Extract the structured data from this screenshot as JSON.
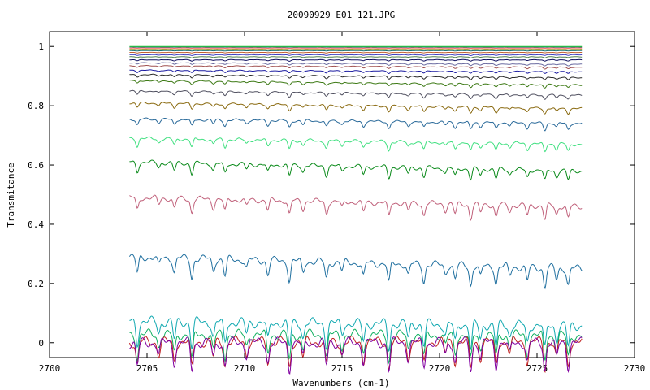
{
  "chart_data": {
    "type": "line",
    "title": "20090929_E01_121.JPG",
    "xlabel": "Wavenumbers (cm-1)",
    "ylabel": "Transmitance",
    "xlim": [
      2700,
      2730
    ],
    "ylim": [
      -0.05,
      1.05
    ],
    "x_ticks": [
      "2700",
      "2705",
      "2710",
      "2715",
      "2720",
      "2725",
      "2730"
    ],
    "y_ticks": [
      "0",
      "0.2",
      "0.4",
      "0.6",
      "0.8",
      "1"
    ],
    "grid": false,
    "legend": "none",
    "x_range_of_data": [
      2704.1,
      2727.3
    ],
    "absorption_lines_cm1": [
      2704.5,
      2705.6,
      2706.4,
      2707.3,
      2708.4,
      2709.0,
      2710.1,
      2711.2,
      2712.3,
      2713.0,
      2714.2,
      2715.0,
      2716.1,
      2717.4,
      2718.4,
      2719.2,
      2720.3,
      2720.8,
      2721.6,
      2722.1,
      2722.9,
      2723.6,
      2724.5,
      2725.4,
      2726.0,
      2726.6
    ],
    "series": [
      {
        "color": "#1f6f9f",
        "start": 0.29,
        "end": 0.25
      },
      {
        "color": "#c0607a",
        "start": 0.49,
        "end": 0.46
      },
      {
        "color": "#0a8a1a",
        "start": 0.61,
        "end": 0.58
      },
      {
        "color": "#40e080",
        "start": 0.69,
        "end": 0.67
      },
      {
        "color": "#2a6a9a",
        "start": 0.755,
        "end": 0.74
      },
      {
        "color": "#8a6a10",
        "start": 0.81,
        "end": 0.79
      },
      {
        "color": "#505060",
        "start": 0.85,
        "end": 0.835
      },
      {
        "color": "#3d7a15",
        "start": 0.885,
        "end": 0.87
      },
      {
        "color": "#2a2a2a",
        "start": 0.905,
        "end": 0.895
      },
      {
        "color": "#1a1aa0",
        "start": 0.92,
        "end": 0.915
      },
      {
        "color": "#a05050",
        "start": 0.935,
        "end": 0.93
      },
      {
        "color": "#6a6aa0",
        "start": 0.945,
        "end": 0.94
      },
      {
        "color": "#101060",
        "start": 0.955,
        "end": 0.955
      },
      {
        "color": "#508050",
        "start": 0.965,
        "end": 0.965
      },
      {
        "color": "#4040c0",
        "start": 0.972,
        "end": 0.972
      },
      {
        "color": "#c06030",
        "start": 0.98,
        "end": 0.98
      },
      {
        "color": "#207070",
        "start": 0.986,
        "end": 0.986
      },
      {
        "color": "#808000",
        "start": 0.99,
        "end": 0.99
      },
      {
        "color": "#ff4040",
        "start": 0.995,
        "end": 0.995
      },
      {
        "color": "#00a0a0",
        "start": 0.998,
        "end": 0.998
      },
      {
        "color": "#30c030",
        "start": 1.0,
        "end": 1.0
      },
      {
        "color": "#10a8b0",
        "start": 0.072,
        "end": 0.058
      },
      {
        "color": "#10b060",
        "start": 0.028,
        "end": 0.025
      },
      {
        "color": "#c02020",
        "start": 0.003,
        "end": 0.003
      },
      {
        "color": "#8000a0",
        "start": 0.0,
        "end": 0.0
      }
    ]
  }
}
